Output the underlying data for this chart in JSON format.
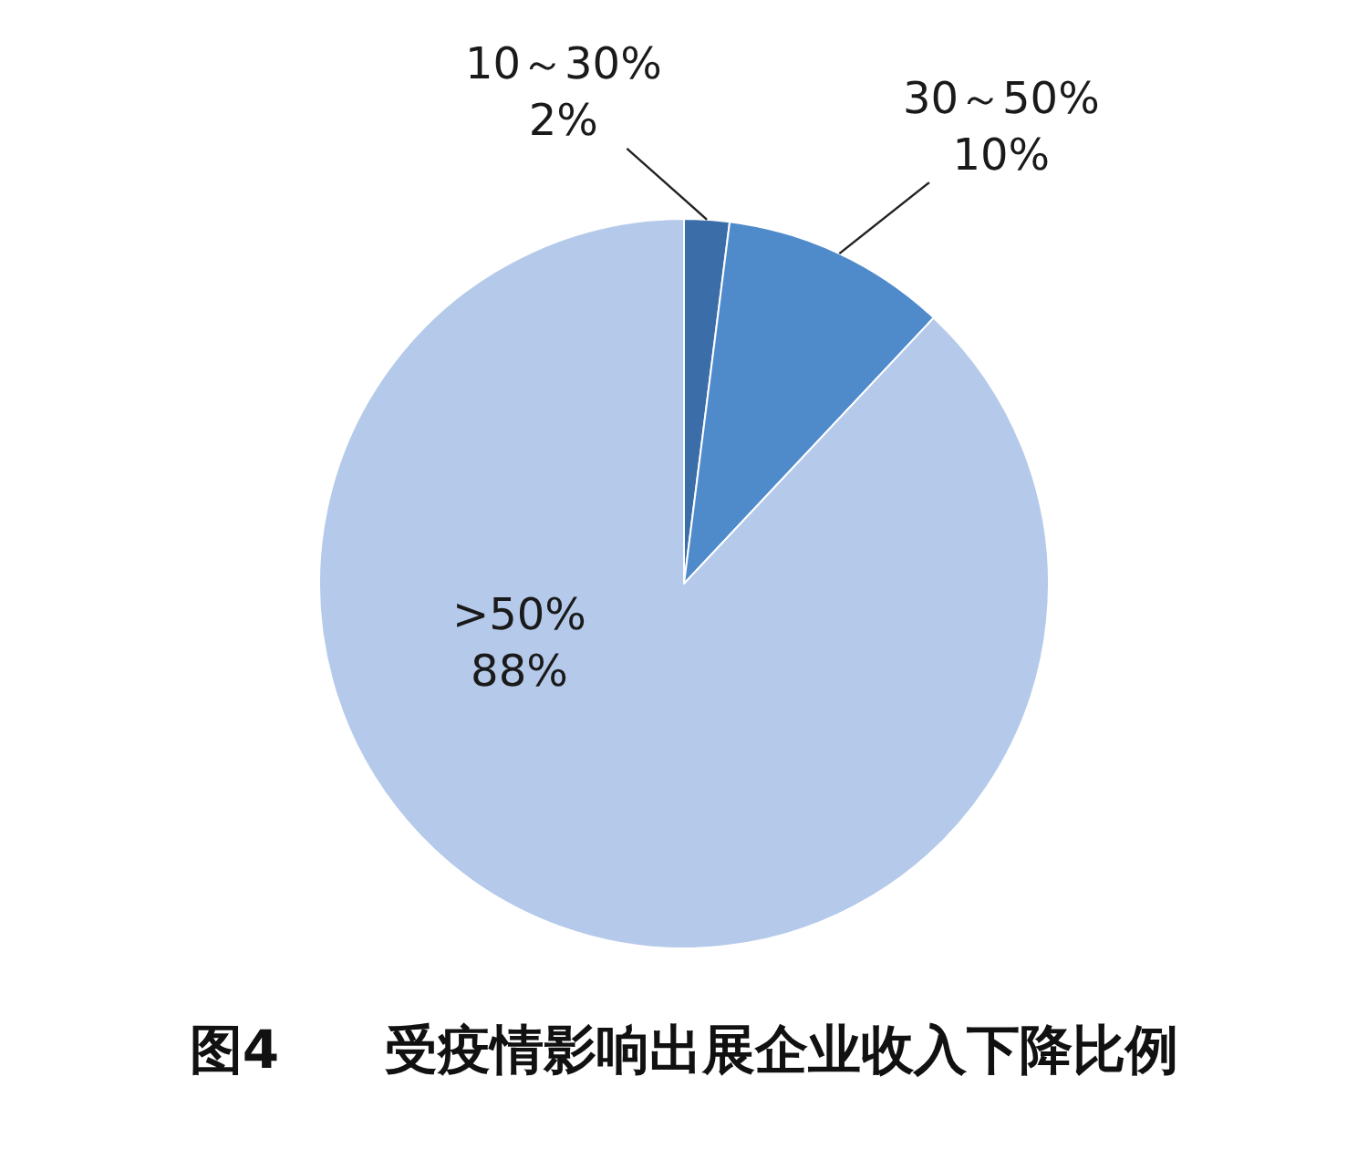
{
  "chart_data": {
    "type": "pie",
    "title": "图4　　受疫情影响出展企业收入下降比例",
    "categories": [
      "10～30%",
      "30～50%",
      ">50%"
    ],
    "values": [
      2,
      10,
      88
    ],
    "value_labels": [
      "2%",
      "10%",
      "88%"
    ],
    "colors": [
      "#3b6ea8",
      "#4f8acb",
      "#b5caea"
    ]
  }
}
